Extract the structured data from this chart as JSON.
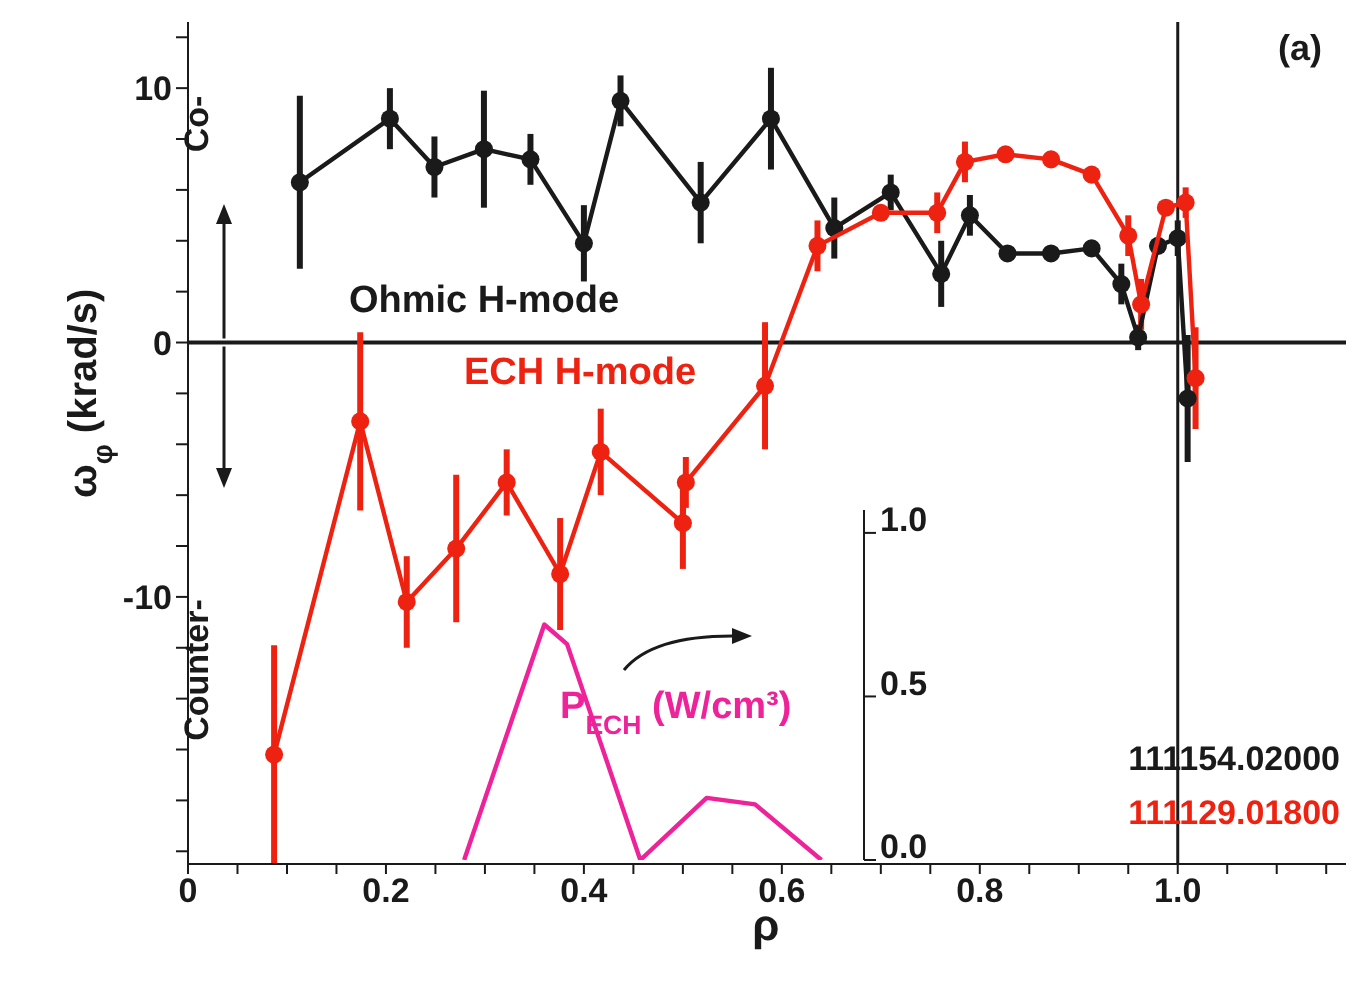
{
  "chart_data": {
    "type": "line",
    "xlabel": "ρ",
    "ylabel": "ω$_{φ}$ (krad/s)",
    "y2label": "P$_{ECH}$ (W/cm³)",
    "xlim": [
      0,
      1.17
    ],
    "ylim": [
      -20.5,
      12.6
    ],
    "xticks": [
      0,
      {
        "value": 0.05,
        "label": null
      },
      {
        "value": 0.1,
        "label": null
      },
      {
        "value": 0.15,
        "label": null
      },
      0.2,
      {
        "value": 0.25,
        "label": null
      },
      {
        "value": 0.3,
        "label": null
      },
      {
        "value": 0.35,
        "label": null
      },
      0.4,
      {
        "value": 0.45,
        "label": null
      },
      {
        "value": 0.5,
        "label": null
      },
      {
        "value": 0.55,
        "label": null
      },
      0.6,
      {
        "value": 0.65,
        "label": null
      },
      {
        "value": 0.7,
        "label": null
      },
      {
        "value": 0.75,
        "label": null
      },
      0.8,
      {
        "value": 0.85,
        "label": null
      },
      {
        "value": 0.9,
        "label": null
      },
      {
        "value": 0.95,
        "label": null
      },
      {
        "value": 1,
        "label": "1.0"
      },
      {
        "value": 1.05,
        "label": null
      },
      {
        "value": 1.1,
        "label": null
      },
      {
        "value": 1.15,
        "label": null
      }
    ],
    "yticks": [
      {
        "value": -20,
        "label": null
      },
      {
        "value": -18,
        "label": null
      },
      {
        "value": -16,
        "label": null
      },
      {
        "value": -14,
        "label": null
      },
      {
        "value": -12,
        "label": null
      },
      -10,
      {
        "value": -8,
        "label": null
      },
      {
        "value": -6,
        "label": null
      },
      {
        "value": -4,
        "label": null
      },
      {
        "value": -2,
        "label": null
      },
      0,
      {
        "value": 2,
        "label": null
      },
      {
        "value": 4,
        "label": null
      },
      {
        "value": 6,
        "label": null
      },
      {
        "value": 8,
        "label": null
      },
      10,
      {
        "value": 12,
        "label": null
      }
    ],
    "y2lim": [
      0,
      1.07
    ],
    "y2ticks": [
      {
        "value": 0,
        "label": "0.0"
      },
      0.5,
      {
        "value": 1,
        "label": "1.0"
      }
    ],
    "marker": "circle",
    "line_style": "solid",
    "ref_lines": [
      {
        "axis": "y",
        "value": 0,
        "color": "#1a1a1a"
      },
      {
        "axis": "x",
        "value": 1,
        "color": "#1a1a1a"
      }
    ],
    "annotations": [
      "(a)",
      "Co-",
      "Counter-",
      "111154.02000",
      "111129.01800"
    ],
    "series": [
      {
        "name": "Ohmic H-mode",
        "color": "#1a1a1a",
        "x": [
          0.113,
          0.204,
          0.249,
          0.299,
          0.346,
          0.4,
          0.437,
          0.518,
          0.589,
          0.653,
          0.71,
          0.761,
          0.79,
          0.828,
          0.872,
          0.913,
          0.943,
          0.96,
          0.98,
          1.0,
          1.01
        ],
        "values": [
          6.3,
          8.8,
          6.9,
          7.6,
          7.2,
          3.9,
          9.5,
          5.5,
          8.8,
          4.5,
          5.9,
          2.7,
          5.0,
          3.5,
          3.5,
          3.7,
          2.3,
          0.2,
          3.8,
          4.1,
          -2.2
        ],
        "errors": [
          3.4,
          1.2,
          1.2,
          2.3,
          1.0,
          1.5,
          1.0,
          1.6,
          2.0,
          1.2,
          0.7,
          1.3,
          0.8,
          null,
          null,
          null,
          0.8,
          0.5,
          null,
          0.7,
          2.5
        ]
      },
      {
        "name": "ECH H-mode",
        "color": "#ee2211",
        "x": [
          0.087,
          0.174,
          0.221,
          0.271,
          0.322,
          0.376,
          0.417,
          0.5,
          0.503,
          0.583,
          0.636,
          0.7,
          0.757,
          0.785,
          0.826,
          0.872,
          0.913,
          0.95,
          0.963,
          0.988,
          1.008,
          1.018
        ],
        "values": [
          -16.2,
          -3.1,
          -10.2,
          -8.1,
          -5.5,
          -9.1,
          -4.3,
          -7.1,
          -5.5,
          -1.7,
          3.8,
          5.1,
          5.1,
          7.1,
          7.4,
          7.2,
          6.6,
          4.2,
          1.5,
          5.3,
          5.5,
          -1.4
        ],
        "errors": [
          4.3,
          3.5,
          1.8,
          2.9,
          1.3,
          2.2,
          1.7,
          1.8,
          1.0,
          2.5,
          1.0,
          null,
          0.8,
          0.8,
          null,
          null,
          null,
          0.8,
          1.0,
          null,
          0.6,
          2.0
        ]
      },
      {
        "color": "#ee2299",
        "axis": "y2",
        "marker": "none",
        "x": [
          0.279,
          0.36,
          0.383,
          0.457,
          0.524,
          0.573,
          0.64
        ],
        "values": [
          0,
          0.72,
          0.66,
          0,
          0.19,
          0.17,
          0
        ]
      }
    ]
  }
}
